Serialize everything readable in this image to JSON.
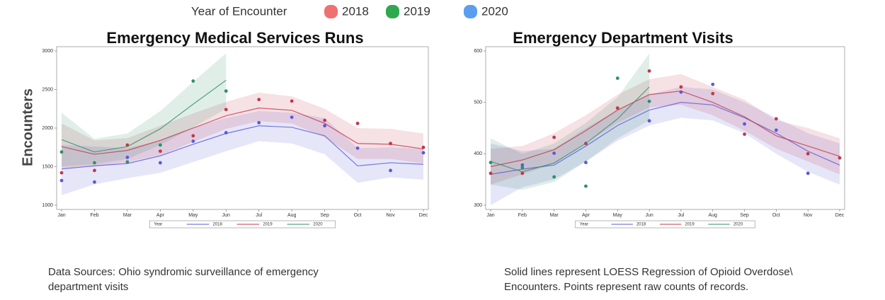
{
  "legend": {
    "title": "Year of Encounter",
    "items": [
      {
        "label": "2018",
        "color": "#f07070"
      },
      {
        "label": "2019",
        "color": "#2fa84f"
      },
      {
        "label": "2020",
        "color": "#5b9ef0"
      }
    ]
  },
  "y_label": "Encounters",
  "notes": [
    "Data Sources: Ohio syndromic surveillance of emergency",
    "department visits",
    "Solid lines represent LOESS Regression of Opioid Overdose\\",
    " Encounters. Points represent raw counts of records."
  ],
  "chart_data": [
    {
      "type": "line",
      "title": "Emergency Medical Services Runs",
      "legend_title": "Year",
      "categories": [
        "Jan",
        "Feb",
        "Mar",
        "Apr",
        "May",
        "Jun",
        "Jul",
        "Aug",
        "Sep",
        "Oct",
        "Nov",
        "Dec"
      ],
      "ylim": [
        1000,
        3000
      ],
      "yticks": [
        1000,
        1500,
        2000,
        2500,
        3000
      ],
      "series": [
        {
          "name": "2018",
          "color": "#5a5ad8",
          "values": [
            1470,
            1510,
            1540,
            1640,
            1790,
            1930,
            2030,
            2010,
            1900,
            1510,
            1550,
            1530
          ],
          "lower": [
            1130,
            1270,
            1350,
            1420,
            1560,
            1700,
            1830,
            1800,
            1660,
            1290,
            1360,
            1330
          ],
          "upper": [
            1780,
            1760,
            1740,
            1840,
            2010,
            2130,
            2220,
            2200,
            2130,
            1740,
            1750,
            1730
          ],
          "points": [
            1320,
            1300,
            1620,
            1550,
            1830,
            1940,
            2070,
            2140,
            2030,
            1740,
            1450,
            1680
          ]
        },
        {
          "name": "2019",
          "color": "#c0384a",
          "values": [
            1760,
            1660,
            1710,
            1840,
            2000,
            2160,
            2260,
            2230,
            2060,
            1800,
            1790,
            1730
          ],
          "lower": [
            1480,
            1500,
            1560,
            1650,
            1820,
            1990,
            2090,
            2060,
            1880,
            1600,
            1600,
            1540
          ],
          "upper": [
            2060,
            1840,
            1870,
            2030,
            2190,
            2340,
            2460,
            2410,
            2250,
            2000,
            1990,
            1930
          ],
          "points": [
            1420,
            1450,
            1780,
            1700,
            1900,
            2240,
            2370,
            2350,
            2100,
            2060,
            1800,
            1750
          ]
        },
        {
          "name": "2020",
          "color": "#2f8f68",
          "values": [
            1850,
            1690,
            1760,
            1990,
            2310,
            2620,
            null,
            null,
            null,
            null,
            null,
            null
          ],
          "lower": [
            1500,
            1530,
            1600,
            1780,
            2010,
            2250,
            null,
            null,
            null,
            null,
            null,
            null
          ],
          "upper": [
            2200,
            1860,
            1930,
            2220,
            2600,
            2970,
            null,
            null,
            null,
            null,
            null,
            null
          ],
          "points": [
            1690,
            1550,
            1560,
            1780,
            2610,
            2480,
            null,
            null,
            null,
            null,
            null,
            null
          ]
        }
      ]
    },
    {
      "type": "line",
      "title": "Emergency Department Visits",
      "legend_title": "Year",
      "categories": [
        "Jan",
        "Feb",
        "Mar",
        "Apr",
        "May",
        "Jun",
        "Jul",
        "Aug",
        "Sep",
        "Oct",
        "Nov",
        "Dec"
      ],
      "ylim": [
        300,
        600
      ],
      "yticks": [
        300,
        400,
        500,
        600
      ],
      "series": [
        {
          "name": "2018",
          "color": "#5a5ad8",
          "values": [
            360,
            370,
            378,
            415,
            455,
            485,
            500,
            495,
            470,
            440,
            405,
            378
          ],
          "lower": [
            300,
            335,
            350,
            385,
            425,
            455,
            470,
            465,
            440,
            400,
            365,
            340
          ],
          "upper": [
            420,
            405,
            410,
            450,
            485,
            515,
            530,
            525,
            500,
            470,
            440,
            420
          ],
          "points": [
            null,
            378,
            401,
            383,
            null,
            464,
            520,
            535,
            458,
            446,
            362,
            null
          ]
        },
        {
          "name": "2019",
          "color": "#c0384a",
          "values": [
            375,
            388,
            408,
            445,
            485,
            515,
            522,
            500,
            472,
            435,
            415,
            395
          ],
          "lower": [
            340,
            360,
            380,
            420,
            460,
            490,
            495,
            475,
            445,
            410,
            385,
            360
          ],
          "upper": [
            410,
            415,
            440,
            475,
            515,
            545,
            555,
            530,
            505,
            465,
            450,
            430
          ],
          "points": [
            362,
            362,
            432,
            420,
            489,
            561,
            530,
            517,
            438,
            468,
            400,
            392
          ]
        },
        {
          "name": "2020",
          "color": "#2f8f68",
          "values": [
            385,
            365,
            382,
            420,
            468,
            530,
            null,
            null,
            null,
            null,
            null,
            null
          ],
          "lower": [
            340,
            330,
            345,
            385,
            430,
            465,
            null,
            null,
            null,
            null,
            null,
            null
          ],
          "upper": [
            430,
            400,
            420,
            460,
            510,
            595,
            null,
            null,
            null,
            null,
            null,
            null
          ],
          "points": [
            383,
            373,
            355,
            337,
            547,
            502,
            null,
            null,
            null,
            null,
            null,
            null
          ]
        }
      ]
    }
  ]
}
